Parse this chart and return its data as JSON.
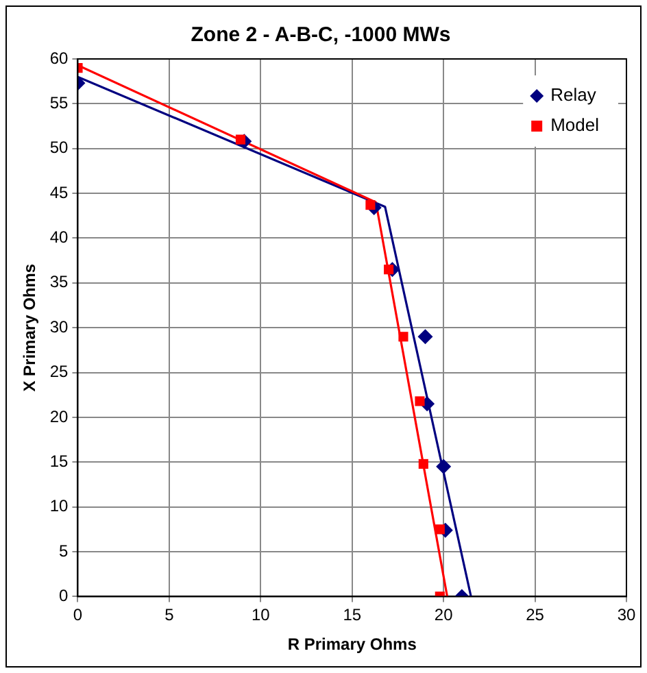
{
  "chart_data": {
    "type": "scatter",
    "title": "Zone 2 - A-B-C, -1000 MWs",
    "xlabel": "R Primary Ohms",
    "ylabel": "X Primary Ohms",
    "xlim": [
      0,
      30
    ],
    "xticks": [
      0,
      5,
      10,
      15,
      20,
      25,
      30
    ],
    "ylim": [
      0,
      60
    ],
    "yticks": [
      0,
      5,
      10,
      15,
      20,
      25,
      30,
      35,
      40,
      45,
      50,
      55,
      60
    ],
    "grid": true,
    "legend": "top right",
    "series": [
      {
        "type": "line",
        "color": "#000080",
        "marker": "none",
        "x": [
          0,
          16.8,
          21.5
        ],
        "values": [
          58,
          43.5,
          0
        ]
      },
      {
        "type": "line",
        "color": "#ff0000",
        "marker": "none",
        "x": [
          0,
          16.3,
          20.2
        ],
        "values": [
          59.3,
          44,
          0
        ]
      },
      {
        "name": "Relay",
        "color": "#000080",
        "marker": "diamond",
        "x": [
          0,
          9.1,
          16.2,
          17.2,
          19,
          19.1,
          20,
          20.1,
          21
        ],
        "values": [
          57.3,
          50.8,
          43.4,
          36.5,
          29,
          21.5,
          14.5,
          7.4,
          0
        ]
      },
      {
        "name": "Model",
        "color": "#ff0000",
        "marker": "square",
        "x": [
          0,
          8.9,
          16,
          17,
          17.8,
          18.7,
          18.9,
          19.8,
          19.8
        ],
        "values": [
          59,
          51,
          43.7,
          36.5,
          29,
          21.8,
          14.8,
          7.5,
          0
        ]
      }
    ]
  }
}
